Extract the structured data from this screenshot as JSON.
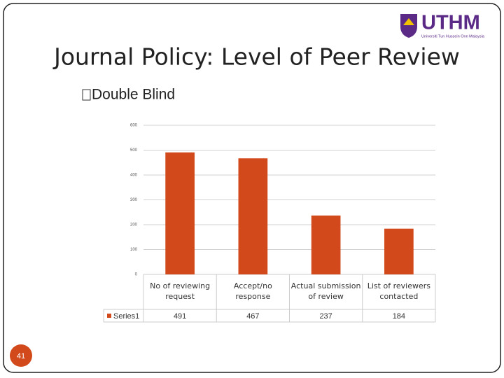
{
  "slide": {
    "title": "Journal Policy: Level of Peer Review",
    "bullet": "Double Blind",
    "logo": "UTHM",
    "logo_subtitle": "Universiti Tun Hussein Onn Malaysia",
    "page_number": 41
  },
  "chart_data": {
    "type": "bar",
    "categories": [
      "No of reviewing request",
      "Accept/no response",
      "Actual submission of review",
      "List of reviewers contacted"
    ],
    "series": [
      {
        "name": "Series1",
        "color": "#d2491b",
        "values": [
          491,
          467,
          237,
          184
        ]
      }
    ],
    "ylim": [
      0,
      600
    ],
    "yticks": [
      0,
      100,
      200,
      300,
      400,
      500,
      600
    ],
    "grid": true,
    "legend": "data-table"
  }
}
